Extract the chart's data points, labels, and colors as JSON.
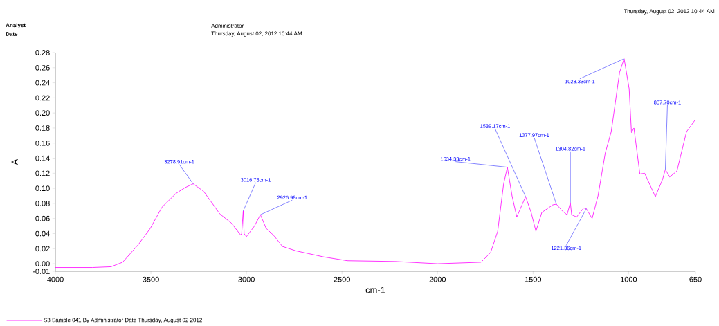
{
  "chart_data": {
    "type": "line",
    "xlabel": "cm-1",
    "ylabel": "A",
    "series": [
      {
        "name": "S3 Sample 041 By Administrator Date Thursday, August 02 2012",
        "color": "#ff00ff",
        "x": [
          4000,
          3806,
          3709,
          3648,
          3564,
          3503,
          3442,
          3370,
          3321,
          3278.91,
          3224,
          3139,
          3079,
          3030,
          3025,
          3016.78,
          3012,
          3000,
          2958,
          2926.98,
          2897,
          2855,
          2812,
          2739,
          2594,
          2472,
          2222,
          2000,
          1772,
          1722,
          1685,
          1654,
          1634.33,
          1610,
          1585,
          1539.17,
          1510,
          1485,
          1454,
          1397,
          1377.97,
          1347,
          1322,
          1304.82,
          1298,
          1272,
          1235,
          1221.36,
          1191,
          1160,
          1122,
          1091,
          1047,
          1023.33,
          997,
          985,
          972,
          941,
          916,
          860,
          822,
          807.7,
          785,
          747,
          697,
          654
        ],
        "values": [
          -0.005,
          -0.005,
          -0.004,
          0.002,
          0.026,
          0.047,
          0.075,
          0.093,
          0.101,
          0.106,
          0.096,
          0.066,
          0.054,
          0.038,
          0.04,
          0.07,
          0.04,
          0.036,
          0.05,
          0.065,
          0.047,
          0.037,
          0.023,
          0.017,
          0.009,
          0.004,
          0.003,
          0.0,
          0.002,
          0.015,
          0.043,
          0.106,
          0.128,
          0.09,
          0.062,
          0.089,
          0.068,
          0.043,
          0.068,
          0.078,
          0.079,
          0.07,
          0.065,
          0.081,
          0.065,
          0.062,
          0.074,
          0.073,
          0.06,
          0.09,
          0.147,
          0.175,
          0.254,
          0.272,
          0.232,
          0.174,
          0.18,
          0.119,
          0.12,
          0.089,
          0.112,
          0.125,
          0.115,
          0.123,
          0.175,
          0.19
        ]
      }
    ],
    "xlim": [
      4000,
      650
    ],
    "xticks": [
      4000,
      3500,
      3000,
      2500,
      2000,
      1500,
      1000,
      650
    ],
    "ylim": [
      -0.01,
      0.28
    ],
    "yticks": [
      -0.01,
      {
        "value": 0,
        "label": "0.00"
      },
      0.02,
      0.04,
      0.06,
      0.08,
      {
        "value": 0.1,
        "label": "0.10"
      },
      0.12,
      0.14,
      0.16,
      0.18,
      {
        "value": 0.2,
        "label": "0.20"
      },
      0.22,
      0.24,
      0.26,
      0.28
    ],
    "legend": "bottom",
    "grid": false,
    "marker": "none",
    "line_style": "solid",
    "annotations": [
      "Analyst",
      "Date",
      "Administrator",
      "Thursday, August 02, 2012 10:44 AM",
      "Thursday, August 02, 2012 10:44 AM",
      {
        "text": "3278.91cm-1",
        "x": 3278.91,
        "y": 0.106
      },
      {
        "text": "3016.78cm-1",
        "x": 3016.78,
        "y": 0.07
      },
      {
        "text": "2926.98cm-1",
        "x": 2926.98,
        "y": 0.065
      },
      {
        "text": "1634.33cm-1",
        "x": 1634.33,
        "y": 0.128
      },
      {
        "text": "1539.17cm-1",
        "x": 1539.17,
        "y": 0.089
      },
      {
        "text": "1377.97cm-1",
        "x": 1377.97,
        "y": 0.079
      },
      {
        "text": "1304.82cm-1",
        "x": 1304.82,
        "y": 0.081
      },
      {
        "text": "1221.36cm-1",
        "x": 1221.36,
        "y": 0.073
      },
      {
        "text": "1023.33cm-1",
        "x": 1023.33,
        "y": 0.272
      },
      {
        "text": "807.70cm-1",
        "x": 807.7,
        "y": 0.125
      }
    ]
  }
}
